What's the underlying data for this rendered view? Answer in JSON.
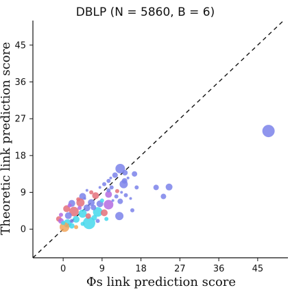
{
  "chart_data": {
    "type": "scatter",
    "title": "DBLP (N = 5860, B = 6)",
    "xlabel": "Φs link prediction score",
    "ylabel": "Theoretic link prediction score",
    "xlim": [
      -7,
      52
    ],
    "ylim": [
      -7,
      51
    ],
    "xticks": [
      0,
      9,
      18,
      27,
      36,
      45
    ],
    "yticks": [
      0,
      9,
      18,
      27,
      36,
      45
    ],
    "grid": false,
    "legend": "none",
    "reference_line": {
      "style": "dashed",
      "color": "#111111",
      "description": "y = x"
    },
    "colors": {
      "periwinkle": "#7b83ea",
      "coral": "#e4707a",
      "cyan": "#45d8ec",
      "violet": "#b46be0",
      "orange": "#f2a65a"
    },
    "points": [
      {
        "x": 47.5,
        "y": 24.0,
        "size": 9,
        "color": "#7b83ea"
      },
      {
        "x": 13.2,
        "y": 14.8,
        "size": 7,
        "color": "#7b83ea"
      },
      {
        "x": 12.0,
        "y": 13.2,
        "size": 4,
        "color": "#7b83ea"
      },
      {
        "x": 14.3,
        "y": 13.8,
        "size": 4,
        "color": "#7b83ea"
      },
      {
        "x": 16.5,
        "y": 13.5,
        "size": 4,
        "color": "#7b83ea"
      },
      {
        "x": 14.2,
        "y": 11.8,
        "size": 4,
        "color": "#7b83ea"
      },
      {
        "x": 10.5,
        "y": 11.8,
        "size": 3,
        "color": "#7b83ea"
      },
      {
        "x": 11.2,
        "y": 10.2,
        "size": 3,
        "color": "#7b83ea"
      },
      {
        "x": 14.0,
        "y": 11.0,
        "size": 6,
        "color": "#7b83ea"
      },
      {
        "x": 17.0,
        "y": 10.2,
        "size": 3,
        "color": "#7b83ea"
      },
      {
        "x": 21.5,
        "y": 10.2,
        "size": 4,
        "color": "#7b83ea"
      },
      {
        "x": 24.5,
        "y": 10.3,
        "size": 5,
        "color": "#7b83ea"
      },
      {
        "x": 23.2,
        "y": 8.0,
        "size": 4,
        "color": "#7b83ea"
      },
      {
        "x": 14.5,
        "y": 8.3,
        "size": 3,
        "color": "#7b83ea"
      },
      {
        "x": 13.2,
        "y": 6.8,
        "size": 4,
        "color": "#7b83ea"
      },
      {
        "x": 13.0,
        "y": 3.2,
        "size": 6,
        "color": "#7b83ea"
      },
      {
        "x": 15.6,
        "y": 7.5,
        "size": 2,
        "color": "#7b83ea"
      },
      {
        "x": 16.0,
        "y": 4.6,
        "size": 3,
        "color": "#7b83ea"
      },
      {
        "x": 12.5,
        "y": 9.3,
        "size": 3,
        "color": "#e4707a"
      },
      {
        "x": 10.5,
        "y": 8.5,
        "size": 5,
        "color": "#b46be0"
      },
      {
        "x": 7.5,
        "y": 8.2,
        "size": 5,
        "color": "#e4707a"
      },
      {
        "x": 10.5,
        "y": 6.0,
        "size": 7,
        "color": "#b46be0"
      },
      {
        "x": 8.5,
        "y": 6.2,
        "size": 5,
        "color": "#7b83ea"
      },
      {
        "x": 4.5,
        "y": 8.0,
        "size": 5,
        "color": "#7b83ea"
      },
      {
        "x": 4.0,
        "y": 6.5,
        "size": 6,
        "color": "#e4707a"
      },
      {
        "x": 6.5,
        "y": 6.5,
        "size": 5,
        "color": "#7b83ea"
      },
      {
        "x": 2.0,
        "y": 6.3,
        "size": 5,
        "color": "#7b83ea"
      },
      {
        "x": 0.8,
        "y": 5.0,
        "size": 5,
        "color": "#e4707a"
      },
      {
        "x": 5.5,
        "y": 5.2,
        "size": 5,
        "color": "#7b83ea"
      },
      {
        "x": 8.0,
        "y": 4.2,
        "size": 7,
        "color": "#45d8ec"
      },
      {
        "x": 9.5,
        "y": 4.0,
        "size": 5,
        "color": "#e4707a"
      },
      {
        "x": 2.5,
        "y": 4.3,
        "size": 7,
        "color": "#e4707a"
      },
      {
        "x": 4.5,
        "y": 3.8,
        "size": 6,
        "color": "#45d8ec"
      },
      {
        "x": 1.2,
        "y": 3.3,
        "size": 5,
        "color": "#7b83ea"
      },
      {
        "x": 3.0,
        "y": 2.4,
        "size": 5,
        "color": "#45d8ec"
      },
      {
        "x": 6.0,
        "y": 1.5,
        "size": 9,
        "color": "#45d8ec"
      },
      {
        "x": 1.0,
        "y": 1.4,
        "size": 6,
        "color": "#45d8ec"
      },
      {
        "x": -1.0,
        "y": 2.5,
        "size": 4,
        "color": "#e4707a"
      },
      {
        "x": 0.3,
        "y": 0.5,
        "size": 7,
        "color": "#f2a65a"
      },
      {
        "x": -0.5,
        "y": 2.0,
        "size": 4,
        "color": "#b46be0"
      },
      {
        "x": 2.0,
        "y": 0.8,
        "size": 4,
        "color": "#45d8ec"
      },
      {
        "x": 7.2,
        "y": 2.8,
        "size": 4,
        "color": "#45d8ec"
      },
      {
        "x": -0.5,
        "y": 3.5,
        "size": 3,
        "color": "#b46be0"
      },
      {
        "x": 5.5,
        "y": 9.5,
        "size": 2,
        "color": "#7b83ea"
      },
      {
        "x": 8.5,
        "y": 10.2,
        "size": 2,
        "color": "#7b83ea"
      },
      {
        "x": 9.5,
        "y": 11.0,
        "size": 3,
        "color": "#7b83ea"
      },
      {
        "x": 10.5,
        "y": 9.5,
        "size": 3,
        "color": "#7b83ea"
      },
      {
        "x": 6.5,
        "y": 9.0,
        "size": 3,
        "color": "#e4707a"
      },
      {
        "x": 3.5,
        "y": 7.3,
        "size": 3,
        "color": "#e4707a"
      },
      {
        "x": 11.5,
        "y": 7.0,
        "size": 2,
        "color": "#7b83ea"
      },
      {
        "x": 12.3,
        "y": 8.0,
        "size": 3,
        "color": "#7b83ea"
      },
      {
        "x": 9.0,
        "y": 7.0,
        "size": 3,
        "color": "#45d8ec"
      },
      {
        "x": 7.0,
        "y": 5.3,
        "size": 4,
        "color": "#7b83ea"
      },
      {
        "x": 3.8,
        "y": 5.2,
        "size": 3,
        "color": "#b46be0"
      },
      {
        "x": 5.8,
        "y": 3.2,
        "size": 4,
        "color": "#e4707a"
      },
      {
        "x": 2.0,
        "y": 2.0,
        "size": 3,
        "color": "#7b83ea"
      },
      {
        "x": 4.5,
        "y": 1.3,
        "size": 3,
        "color": "#45d8ec"
      },
      {
        "x": 10.0,
        "y": 2.5,
        "size": 3,
        "color": "#45d8ec"
      },
      {
        "x": 1.5,
        "y": 5.8,
        "size": 3,
        "color": "#b46be0"
      },
      {
        "x": 8.0,
        "y": 2.0,
        "size": 3,
        "color": "#7b83ea"
      },
      {
        "x": 0.0,
        "y": 1.5,
        "size": 3,
        "color": "#45d8ec"
      },
      {
        "x": 3.0,
        "y": 0.5,
        "size": 3,
        "color": "#f2a65a"
      },
      {
        "x": 5.0,
        "y": 7.5,
        "size": 2,
        "color": "#7b83ea"
      },
      {
        "x": 13.5,
        "y": 9.0,
        "size": 2,
        "color": "#7b83ea"
      },
      {
        "x": 15.0,
        "y": 12.5,
        "size": 2,
        "color": "#7b83ea"
      },
      {
        "x": 11.0,
        "y": 12.5,
        "size": 2,
        "color": "#7b83ea"
      }
    ]
  }
}
